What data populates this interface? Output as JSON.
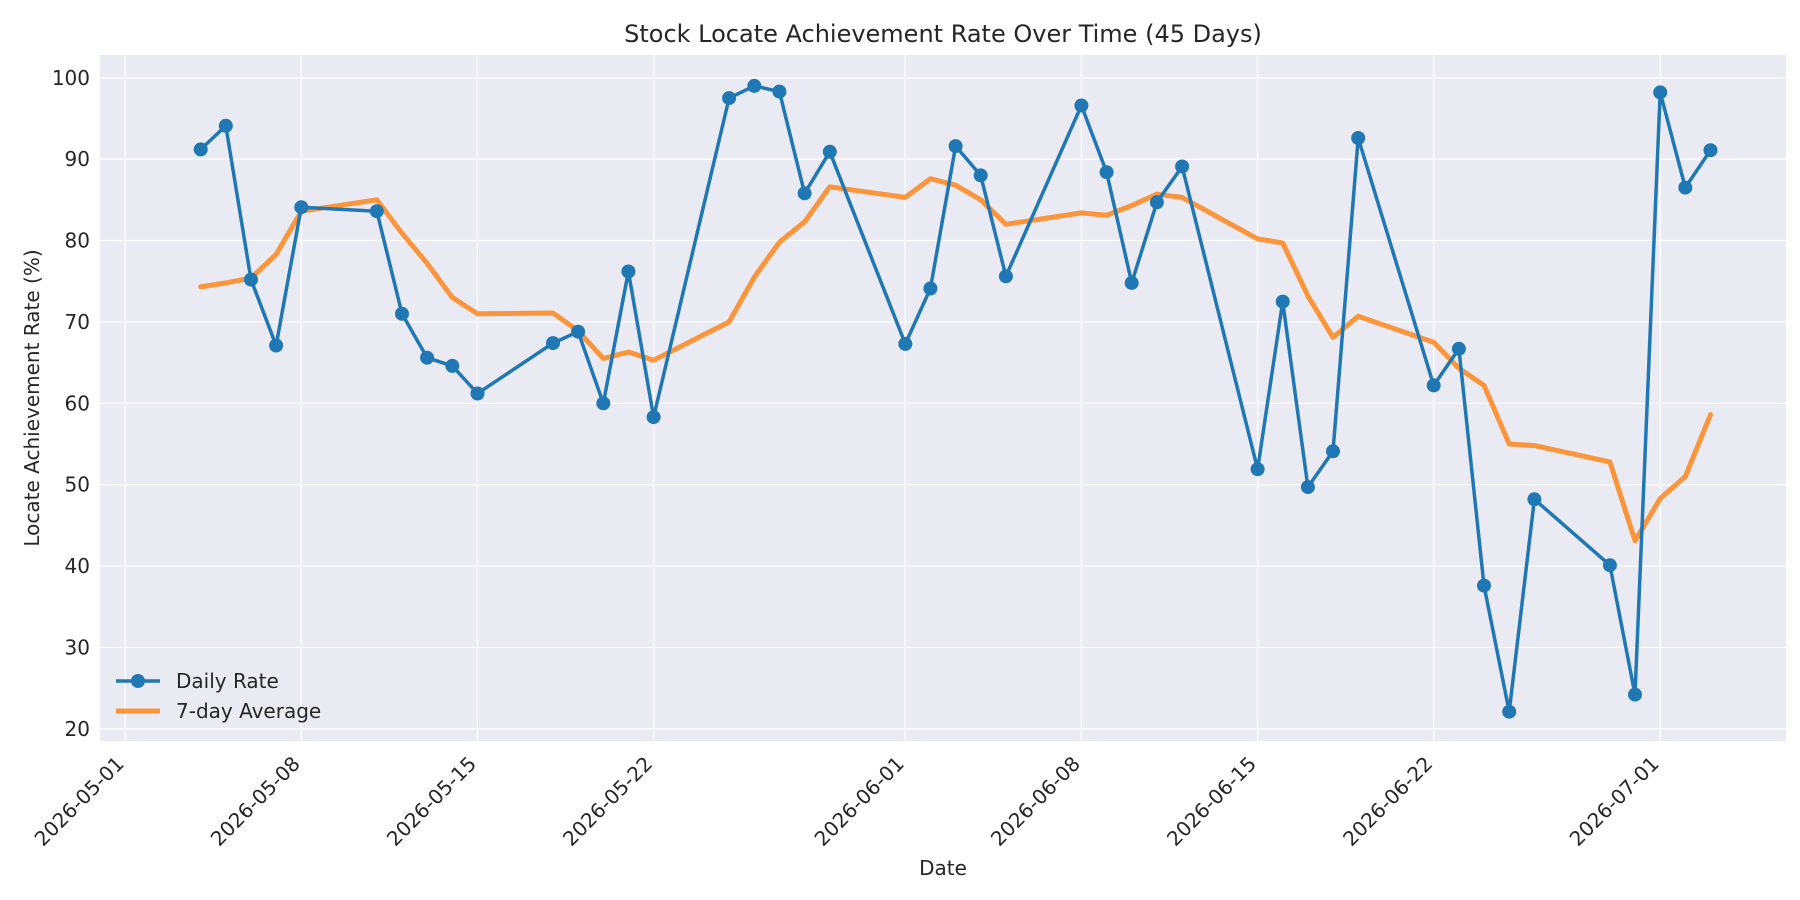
{
  "chart_data": {
    "type": "line",
    "title": "Stock Locate Achievement Rate Over Time (45 Days)",
    "xlabel": "Date",
    "ylabel": "Locate Achievement Rate (%)",
    "x_range": [
      "2026-04-30",
      "2026-07-06"
    ],
    "ylim": [
      18.5,
      102.8
    ],
    "x_ticks": [
      "2026-05-01",
      "2026-05-08",
      "2026-05-15",
      "2026-05-22",
      "2026-06-01",
      "2026-06-08",
      "2026-06-15",
      "2026-06-22",
      "2026-07-01"
    ],
    "y_ticks": [
      20,
      30,
      40,
      50,
      60,
      70,
      80,
      90,
      100
    ],
    "grid": true,
    "legend_position": "lower-left",
    "x": [
      "2026-05-04",
      "2026-05-05",
      "2026-05-06",
      "2026-05-07",
      "2026-05-08",
      "2026-05-11",
      "2026-05-12",
      "2026-05-13",
      "2026-05-14",
      "2026-05-15",
      "2026-05-18",
      "2026-05-19",
      "2026-05-20",
      "2026-05-21",
      "2026-05-22",
      "2026-05-25",
      "2026-05-26",
      "2026-05-27",
      "2026-05-28",
      "2026-05-29",
      "2026-06-01",
      "2026-06-02",
      "2026-06-03",
      "2026-06-04",
      "2026-06-05",
      "2026-06-08",
      "2026-06-09",
      "2026-06-10",
      "2026-06-11",
      "2026-06-12",
      "2026-06-15",
      "2026-06-16",
      "2026-06-17",
      "2026-06-18",
      "2026-06-19",
      "2026-06-22",
      "2026-06-23",
      "2026-06-24",
      "2026-06-25",
      "2026-06-26",
      "2026-06-29",
      "2026-06-30",
      "2026-07-01",
      "2026-07-02",
      "2026-07-03"
    ],
    "series": [
      {
        "name": "Daily Rate",
        "color": "#1f77b4",
        "marker": "circle",
        "values": [
          91.2,
          94.1,
          75.2,
          67.1,
          84.1,
          83.6,
          71.0,
          65.6,
          64.6,
          61.2,
          67.4,
          68.8,
          60.0,
          76.2,
          58.3,
          97.5,
          99.0,
          98.3,
          85.8,
          90.9,
          67.3,
          74.1,
          91.6,
          88.0,
          75.6,
          96.6,
          88.4,
          74.8,
          84.7,
          89.1,
          51.9,
          72.5,
          49.7,
          54.1,
          92.6,
          62.2,
          66.7,
          37.6,
          22.1,
          48.2,
          40.1,
          24.2,
          98.2,
          86.5,
          91.1
        ]
      },
      {
        "name": "7-day Average",
        "color": "#ff7f0e",
        "marker": "none",
        "values": [
          74.3,
          74.8,
          75.4,
          78.3,
          83.6,
          85.0,
          80.9,
          77.2,
          73.0,
          71.0,
          71.1,
          68.9,
          65.5,
          66.3,
          65.3,
          70.0,
          75.5,
          79.8,
          82.3,
          86.6,
          85.3,
          87.6,
          86.8,
          85.0,
          82.0,
          83.4,
          83.1,
          84.3,
          85.7,
          85.3,
          80.2,
          79.7,
          73.2,
          68.1,
          70.7,
          67.5,
          64.3,
          62.2,
          55.0,
          54.8,
          52.8,
          43.1,
          48.3,
          51.0,
          58.6
        ]
      }
    ]
  }
}
